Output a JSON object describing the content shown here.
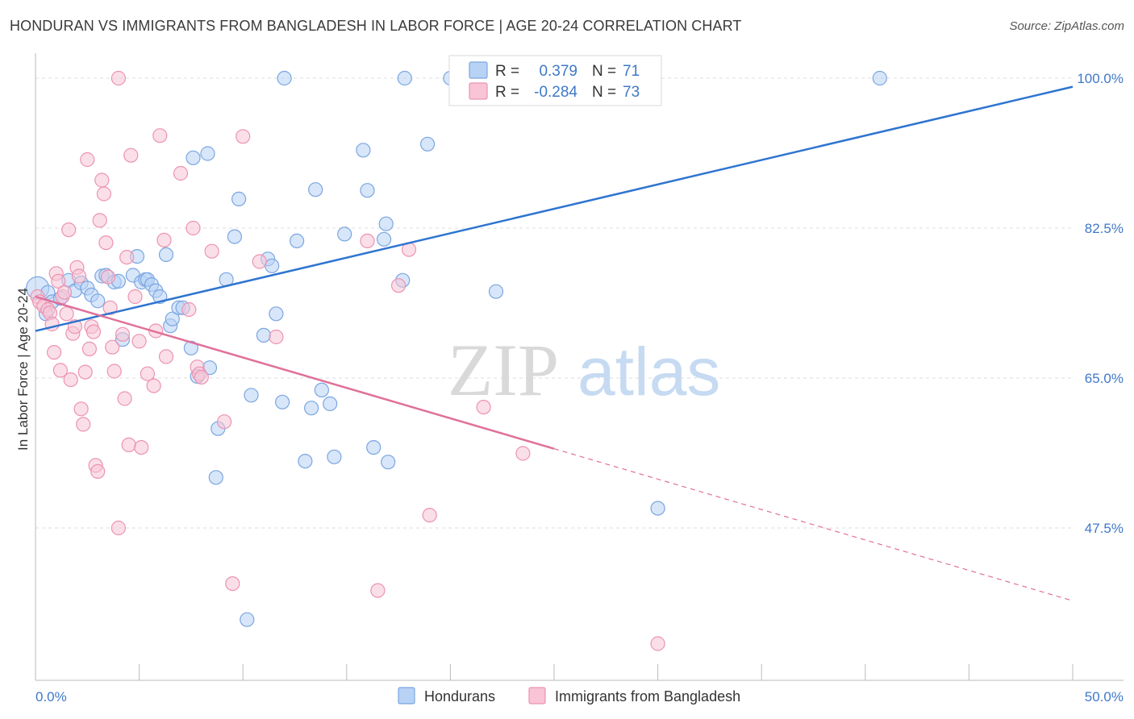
{
  "title": "HONDURAN VS IMMIGRANTS FROM BANGLADESH IN LABOR FORCE | AGE 20-24 CORRELATION CHART",
  "source": "Source: ZipAtlas.com",
  "watermark": {
    "zip": "ZIP",
    "atlas": "atlas"
  },
  "colors": {
    "blue_fill": "#b8d2f5",
    "blue_stroke": "#7aa6e0",
    "blue_line": "#2e74d0",
    "pink_fill": "#f8c4d6",
    "pink_stroke": "#ec93b0",
    "pink_line": "#e0709a",
    "tick_text": "#3f78c8",
    "grid": "#dddddd"
  },
  "legend": {
    "r_label": "R =",
    "n_label": "N =",
    "rows": [
      {
        "r": "0.379",
        "n": "71",
        "series": "blue"
      },
      {
        "r": "-0.284",
        "n": "73",
        "series": "pink"
      }
    ]
  },
  "chart_data": {
    "type": "scatter",
    "title": "HONDURAN VS IMMIGRANTS FROM BANGLADESH IN LABOR FORCE | AGE 20-24 CORRELATION CHART",
    "xlabel": "",
    "ylabel": "In Labor Force | Age 20-24",
    "xlim": [
      0,
      50
    ],
    "ylim": [
      33.5,
      101
    ],
    "x_ticks": [
      {
        "value": 0,
        "label": "0.0%"
      },
      {
        "value": 50,
        "label": "50.0%"
      }
    ],
    "x_minor_ticks": [
      0,
      5,
      10,
      15,
      20,
      25,
      30,
      35,
      40,
      45,
      50
    ],
    "y_ticks": [
      {
        "value": 47.5,
        "label": "47.5%"
      },
      {
        "value": 65.0,
        "label": "65.0%"
      },
      {
        "value": 82.5,
        "label": "82.5%"
      },
      {
        "value": 100.0,
        "label": "100.0%"
      }
    ],
    "grid": true,
    "legend_position": "top-center",
    "series": [
      {
        "name": "Hondurans",
        "color": "blue",
        "trend": {
          "x0": 0,
          "y0": 70.5,
          "x1": 50,
          "y1": 99.0,
          "dashed_from": null
        },
        "points": [
          [
            0.1,
            75.5
          ],
          [
            0.5,
            72.5
          ],
          [
            0.6,
            75.0
          ],
          [
            0.8,
            73.9
          ],
          [
            1.2,
            74.3
          ],
          [
            1.6,
            76.4
          ],
          [
            1.9,
            75.2
          ],
          [
            2.2,
            76.1
          ],
          [
            2.5,
            75.5
          ],
          [
            2.7,
            74.7
          ],
          [
            3.0,
            74.0
          ],
          [
            3.2,
            76.9
          ],
          [
            3.4,
            77.0
          ],
          [
            3.8,
            76.2
          ],
          [
            4.0,
            76.3
          ],
          [
            4.2,
            69.5
          ],
          [
            4.7,
            77.0
          ],
          [
            4.9,
            79.2
          ],
          [
            5.1,
            76.2
          ],
          [
            5.3,
            76.5
          ],
          [
            5.4,
            76.5
          ],
          [
            5.6,
            75.9
          ],
          [
            5.8,
            75.2
          ],
          [
            6.0,
            74.5
          ],
          [
            6.3,
            79.4
          ],
          [
            6.5,
            71.1
          ],
          [
            6.6,
            71.9
          ],
          [
            6.9,
            73.2
          ],
          [
            7.1,
            73.2
          ],
          [
            7.5,
            68.5
          ],
          [
            7.6,
            90.7
          ],
          [
            7.8,
            65.2
          ],
          [
            8.3,
            91.2
          ],
          [
            8.4,
            66.2
          ],
          [
            8.8,
            59.1
          ],
          [
            8.7,
            53.4
          ],
          [
            9.2,
            76.5
          ],
          [
            9.6,
            81.5
          ],
          [
            9.8,
            85.9
          ],
          [
            10.2,
            36.8
          ],
          [
            10.4,
            63.0
          ],
          [
            11.0,
            70.0
          ],
          [
            11.2,
            78.9
          ],
          [
            11.4,
            78.1
          ],
          [
            11.6,
            72.5
          ],
          [
            11.9,
            62.2
          ],
          [
            12.0,
            100.0
          ],
          [
            12.6,
            81.0
          ],
          [
            13.0,
            55.3
          ],
          [
            13.3,
            61.5
          ],
          [
            13.5,
            87.0
          ],
          [
            13.8,
            63.6
          ],
          [
            14.2,
            62.0
          ],
          [
            14.4,
            55.8
          ],
          [
            14.9,
            81.8
          ],
          [
            15.8,
            91.6
          ],
          [
            16.0,
            86.9
          ],
          [
            16.3,
            56.9
          ],
          [
            16.8,
            81.2
          ],
          [
            16.9,
            83.0
          ],
          [
            17.0,
            55.2
          ],
          [
            17.7,
            76.4
          ],
          [
            17.8,
            100.0
          ],
          [
            18.9,
            92.3
          ],
          [
            20.0,
            100.0
          ],
          [
            22.2,
            75.1
          ],
          [
            23.0,
            100.0
          ],
          [
            24.5,
            100.0
          ],
          [
            25.9,
            100.0
          ],
          [
            30.0,
            49.8
          ],
          [
            40.7,
            100.0
          ]
        ]
      },
      {
        "name": "Immigrants from Bangladesh",
        "color": "pink",
        "trend": {
          "x0": 0,
          "y0": 74.5,
          "x1": 50,
          "y1": 39.0,
          "dashed_from": 25.0
        },
        "points": [
          [
            0.1,
            74.5
          ],
          [
            0.2,
            73.9
          ],
          [
            0.4,
            73.4
          ],
          [
            0.6,
            73.0
          ],
          [
            0.7,
            72.6
          ],
          [
            0.8,
            71.3
          ],
          [
            0.9,
            68.0
          ],
          [
            1.0,
            77.2
          ],
          [
            1.1,
            76.3
          ],
          [
            1.2,
            65.9
          ],
          [
            1.3,
            74.5
          ],
          [
            1.4,
            75.0
          ],
          [
            1.5,
            72.5
          ],
          [
            1.6,
            82.3
          ],
          [
            1.7,
            64.8
          ],
          [
            1.8,
            70.2
          ],
          [
            1.9,
            71.0
          ],
          [
            2.0,
            77.9
          ],
          [
            2.1,
            76.9
          ],
          [
            2.2,
            61.4
          ],
          [
            2.3,
            59.6
          ],
          [
            2.4,
            65.7
          ],
          [
            2.5,
            90.5
          ],
          [
            2.6,
            68.4
          ],
          [
            2.7,
            71.0
          ],
          [
            2.8,
            70.4
          ],
          [
            2.9,
            54.8
          ],
          [
            3.0,
            54.1
          ],
          [
            3.1,
            83.4
          ],
          [
            3.2,
            88.1
          ],
          [
            3.3,
            86.5
          ],
          [
            3.4,
            80.8
          ],
          [
            3.5,
            76.8
          ],
          [
            3.6,
            73.2
          ],
          [
            3.7,
            68.6
          ],
          [
            3.8,
            65.8
          ],
          [
            4.0,
            47.5
          ],
          [
            4.0,
            100.0
          ],
          [
            4.2,
            70.1
          ],
          [
            4.3,
            62.6
          ],
          [
            4.4,
            79.1
          ],
          [
            4.5,
            57.2
          ],
          [
            4.6,
            91.0
          ],
          [
            4.8,
            74.5
          ],
          [
            5.0,
            69.3
          ],
          [
            5.1,
            56.9
          ],
          [
            5.4,
            65.5
          ],
          [
            5.7,
            64.1
          ],
          [
            5.8,
            70.5
          ],
          [
            6.0,
            93.3
          ],
          [
            6.2,
            81.1
          ],
          [
            6.3,
            67.5
          ],
          [
            7.0,
            88.9
          ],
          [
            7.4,
            73.0
          ],
          [
            7.6,
            82.5
          ],
          [
            7.8,
            66.3
          ],
          [
            7.9,
            65.5
          ],
          [
            8.0,
            65.1
          ],
          [
            8.5,
            79.8
          ],
          [
            9.1,
            59.9
          ],
          [
            9.5,
            41.0
          ],
          [
            10.0,
            93.2
          ],
          [
            10.8,
            78.6
          ],
          [
            11.6,
            69.8
          ],
          [
            16.0,
            81.0
          ],
          [
            16.5,
            40.2
          ],
          [
            17.5,
            75.8
          ],
          [
            18.0,
            80.0
          ],
          [
            19.0,
            49.0
          ],
          [
            21.6,
            61.6
          ],
          [
            23.5,
            56.2
          ],
          [
            25.5,
            100.0
          ],
          [
            30.0,
            34.0
          ]
        ]
      }
    ]
  },
  "bottom_legend": [
    {
      "label": "Hondurans",
      "color": "blue"
    },
    {
      "label": "Immigrants from Bangladesh",
      "color": "pink"
    }
  ]
}
